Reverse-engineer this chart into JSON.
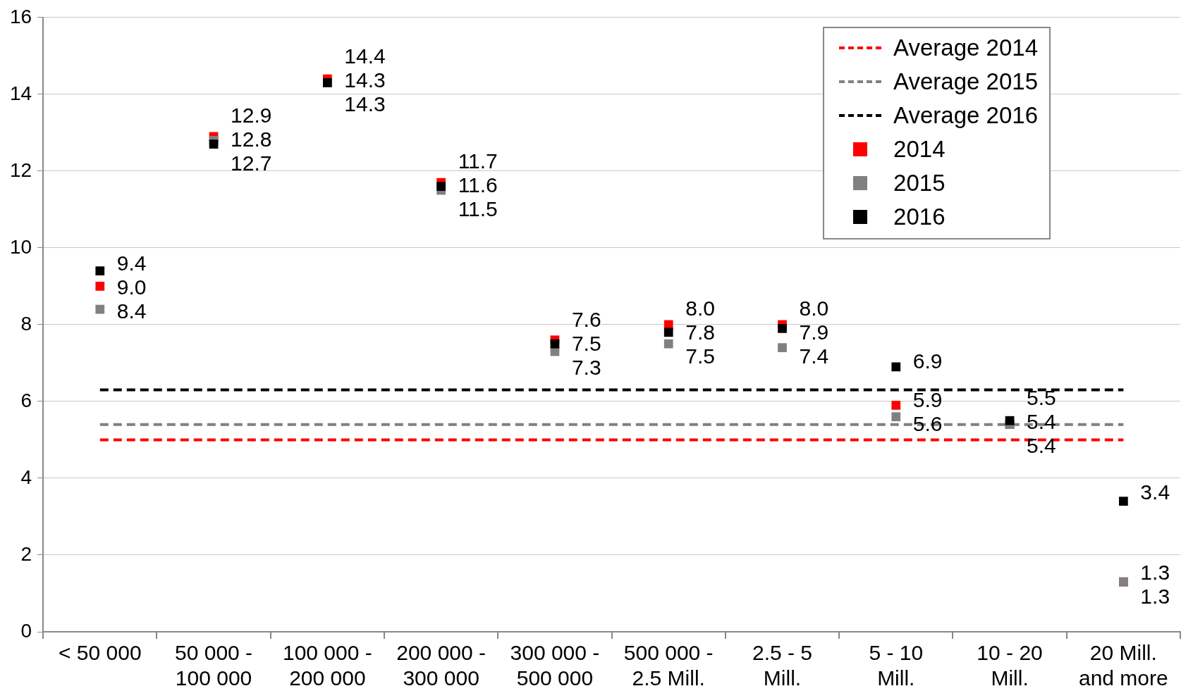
{
  "chart_data": {
    "type": "scatter",
    "categories": [
      "< 50 000",
      "50 000 - 100 000",
      "100 000 - 200 000",
      "200 000 - 300 000",
      "300 000 - 500 000",
      "500 000 - 2.5 Mill.",
      "2.5 - 5 Mill.",
      "5 - 10 Mill.",
      "10 - 20 Mill.",
      "20 Mill. and more"
    ],
    "series": [
      {
        "name": "Average 2014",
        "type": "line",
        "line_style": "dashed",
        "marker": "none",
        "color": "#ff0000",
        "values": [
          5.0,
          5.0,
          5.0,
          5.0,
          5.0,
          5.0,
          5.0,
          5.0,
          5.0,
          5.0
        ]
      },
      {
        "name": "Average 2015",
        "type": "line",
        "line_style": "dashed",
        "marker": "none",
        "color": "#808080",
        "values": [
          5.4,
          5.4,
          5.4,
          5.4,
          5.4,
          5.4,
          5.4,
          5.4,
          5.4,
          5.4
        ]
      },
      {
        "name": "Average 2016",
        "type": "line",
        "line_style": "dashed",
        "marker": "none",
        "color": "#000000",
        "values": [
          6.3,
          6.3,
          6.3,
          6.3,
          6.3,
          6.3,
          6.3,
          6.3,
          6.3,
          6.3
        ]
      },
      {
        "name": "2014",
        "color": "#ff0000",
        "values": [
          9.0,
          12.9,
          14.4,
          11.7,
          7.6,
          8.0,
          8.0,
          5.9,
          5.4,
          1.3
        ],
        "value_labels": [
          "9.0",
          "12.9",
          "14.4",
          "11.7",
          "7.6",
          "8.0",
          "8.0",
          "5.9",
          "5.4",
          "1.3"
        ]
      },
      {
        "name": "2015",
        "color": "#808080",
        "values": [
          8.4,
          12.8,
          14.3,
          11.5,
          7.3,
          7.5,
          7.4,
          5.6,
          5.4,
          1.3
        ],
        "value_labels": [
          "8.4",
          "12.8",
          "14.3",
          "11.5",
          "7.3",
          "7.5",
          "7.4",
          "5.6",
          "5.4",
          "1.3"
        ]
      },
      {
        "name": "2016",
        "color": "#000000",
        "values": [
          9.4,
          12.7,
          14.3,
          11.6,
          7.5,
          7.8,
          7.9,
          6.9,
          5.5,
          3.4
        ],
        "value_labels": [
          "9.4",
          "12.7",
          "14.3",
          "11.6",
          "7.5",
          "7.8",
          "7.9",
          "6.9",
          "5.5",
          "3.4"
        ]
      }
    ],
    "marker": "square",
    "ylim": [
      0,
      16
    ],
    "yticks": [
      0,
      2,
      4,
      6,
      8,
      10,
      12,
      14,
      16
    ],
    "grid": "y",
    "legend": "top right"
  }
}
